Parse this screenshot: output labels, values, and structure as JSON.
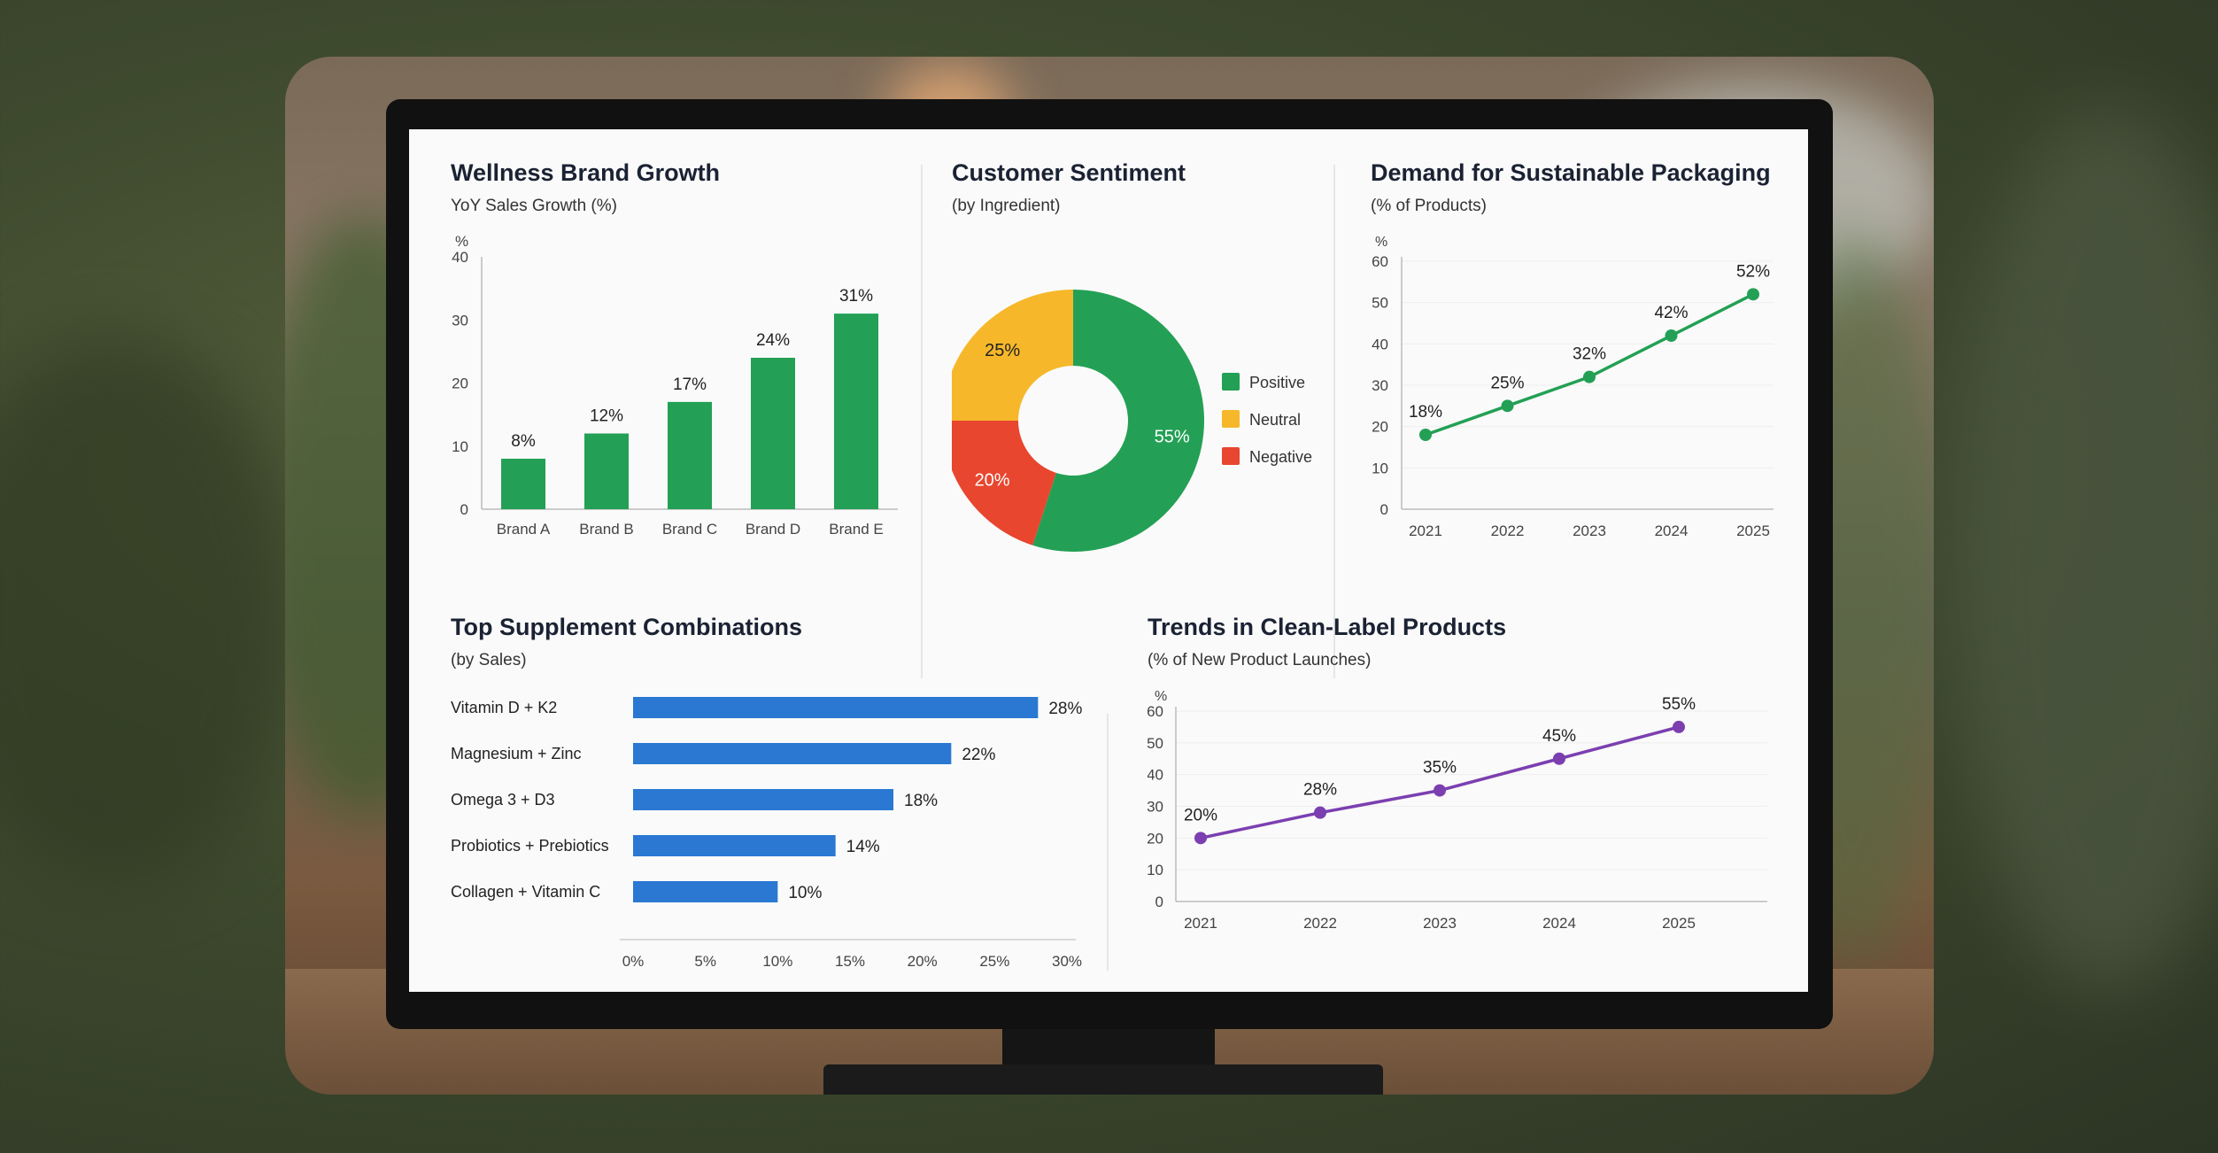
{
  "colors": {
    "green": "#23a055",
    "yellow": "#f6b82a",
    "red": "#e8462f",
    "blue": "#2a78d2",
    "purple": "#7b3fb0",
    "title": "#1a2233",
    "axis": "#444444"
  },
  "chart_data": [
    {
      "id": "brand_growth",
      "type": "bar",
      "title": "Wellness Brand Growth",
      "subtitle": "YoY Sales Growth (%)",
      "yunit": "%",
      "categories": [
        "Brand A",
        "Brand B",
        "Brand C",
        "Brand D",
        "Brand E"
      ],
      "values": [
        8,
        12,
        17,
        24,
        31
      ],
      "data_labels": [
        "8%",
        "12%",
        "17%",
        "24%",
        "31%"
      ],
      "yticks": [
        0,
        10,
        20,
        30,
        40
      ],
      "ylim": [
        0,
        40
      ],
      "color": "#23a055"
    },
    {
      "id": "sentiment",
      "type": "pie",
      "title": "Customer Sentiment",
      "subtitle": "(by Ingredient)",
      "donut": true,
      "slices": [
        {
          "label": "Positive",
          "value": 55,
          "text": "55%",
          "color": "#23a055"
        },
        {
          "label": "Negative",
          "value": 20,
          "text": "20%",
          "color": "#e8462f"
        },
        {
          "label": "Neutral",
          "value": 25,
          "text": "25%",
          "color": "#f6b82a"
        }
      ],
      "legend": [
        {
          "label": "Positive",
          "color": "#23a055"
        },
        {
          "label": "Neutral",
          "color": "#f6b82a"
        },
        {
          "label": "Negative",
          "color": "#e8462f"
        }
      ],
      "legend_placement": "right"
    },
    {
      "id": "packaging",
      "type": "line",
      "title": "Demand for Sustainable Packaging",
      "subtitle": "(% of Products)",
      "yunit": "%",
      "x": [
        "2021",
        "2022",
        "2023",
        "2024",
        "2025"
      ],
      "values": [
        18,
        25,
        32,
        42,
        52
      ],
      "data_labels": [
        "18%",
        "25%",
        "32%",
        "42%",
        "52%"
      ],
      "yticks": [
        0,
        10,
        20,
        30,
        40,
        50,
        60
      ],
      "ylim": [
        0,
        60
      ],
      "color": "#23a055"
    },
    {
      "id": "supplements",
      "type": "bar",
      "orientation": "horizontal",
      "title": "Top Supplement Combinations",
      "subtitle": "(by Sales)",
      "categories": [
        "Vitamin D + K2",
        "Magnesium + Zinc",
        "Omega 3 + D3",
        "Probiotics + Prebiotics",
        "Collagen + Vitamin C"
      ],
      "values": [
        28,
        22,
        18,
        14,
        10
      ],
      "data_labels": [
        "28%",
        "22%",
        "18%",
        "14%",
        "10%"
      ],
      "xticks": [
        "0%",
        "5%",
        "10%",
        "15%",
        "20%",
        "25%",
        "30%"
      ],
      "xlim": [
        0,
        30
      ],
      "color": "#2a78d2"
    },
    {
      "id": "clean_label",
      "type": "line",
      "title": "Trends in Clean-Label Products",
      "subtitle": "(% of New Product Launches)",
      "yunit": "%",
      "x": [
        "2021",
        "2022",
        "2023",
        "2024",
        "2025"
      ],
      "values": [
        20,
        28,
        35,
        45,
        55
      ],
      "data_labels": [
        "20%",
        "28%",
        "35%",
        "45%",
        "55%"
      ],
      "yticks": [
        0,
        10,
        20,
        30,
        40,
        50,
        60
      ],
      "ylim": [
        0,
        60
      ],
      "color": "#7b3fb0"
    }
  ]
}
